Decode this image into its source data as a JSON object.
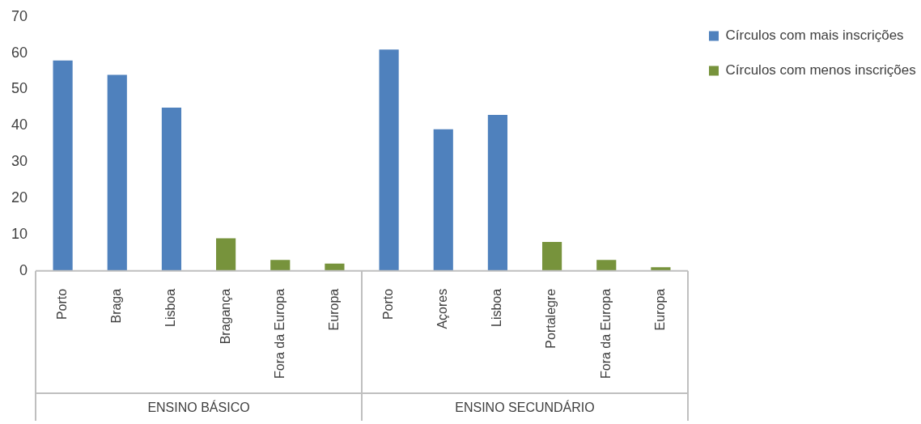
{
  "chart_data": {
    "type": "bar",
    "categories": [
      "Porto",
      "Braga",
      "Lisboa",
      "Bragança",
      "Fora da Europa",
      "Europa",
      "Porto",
      "Açores",
      "Lisboa",
      "Portalegre",
      "Fora da Europa",
      "Europa"
    ],
    "series": [
      {
        "name": "Círculos com mais inscrições",
        "color": "#4f81bd",
        "values": [
          58,
          54,
          45,
          null,
          null,
          null,
          61,
          39,
          43,
          null,
          null,
          null
        ]
      },
      {
        "name": "Círculos com menos inscrições",
        "color": "#77933c",
        "values": [
          null,
          null,
          null,
          9,
          3,
          2,
          null,
          null,
          null,
          8,
          3,
          1
        ]
      }
    ],
    "ylim": [
      0,
      70
    ],
    "yticks": [
      0,
      10,
      20,
      30,
      40,
      50,
      60,
      70
    ],
    "grid": false,
    "legend": "top right",
    "annotations": [
      "ENSINO BÁSICO",
      "ENSINO SECUNDÁRIO"
    ]
  }
}
